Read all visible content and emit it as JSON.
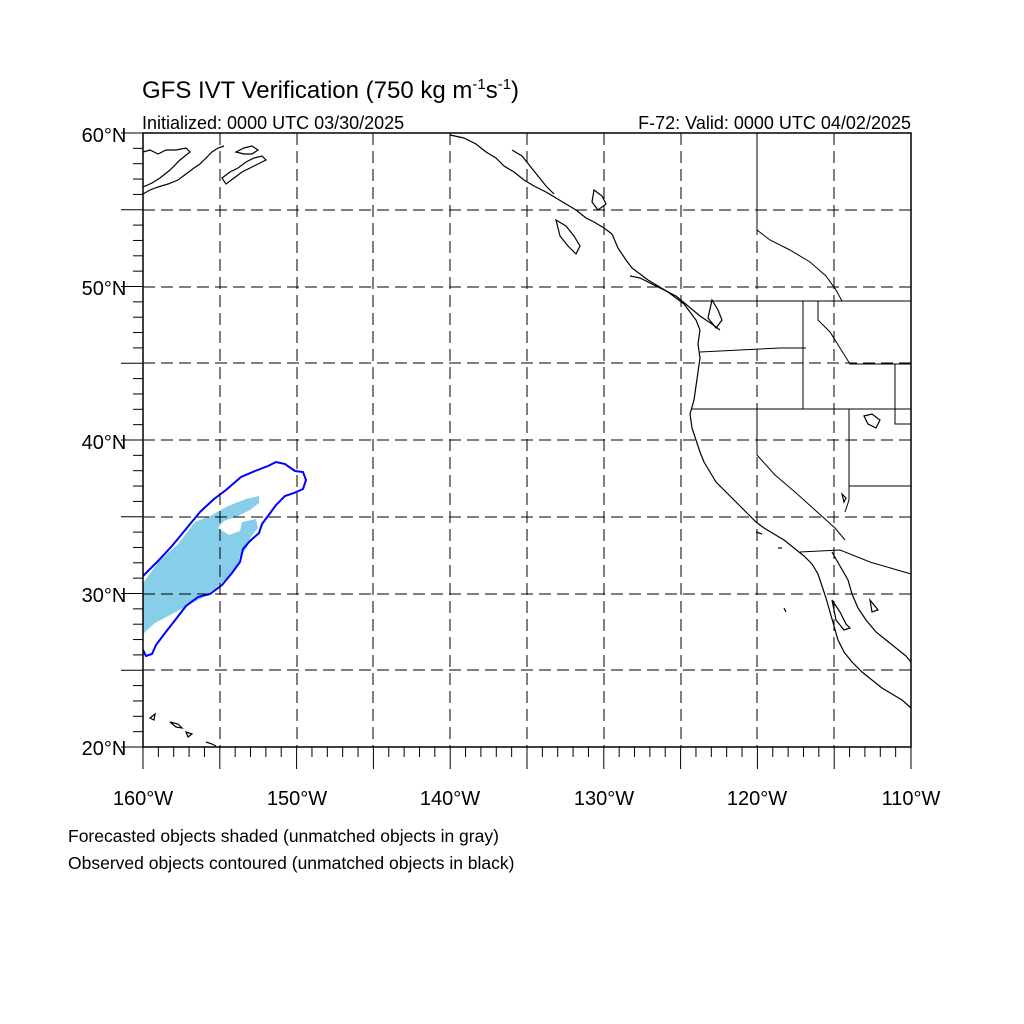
{
  "title": {
    "main": "GFS IVT Verification (750 kg m",
    "exp1": "-1",
    "mid": "s",
    "exp2": "-1",
    "end": ")"
  },
  "initialized": "Initialized: 0000 UTC 03/30/2025",
  "valid": "F-72: Valid: 0000 UTC 04/02/2025",
  "lat_labels": [
    "60°N",
    "50°N",
    "40°N",
    "30°N",
    "20°N"
  ],
  "lon_labels": [
    "160°W",
    "150°W",
    "140°W",
    "130°W",
    "120°W",
    "110°W"
  ],
  "footnotes": [
    "Forecasted objects shaded (unmatched objects in gray)",
    "Observed objects contoured (unmatched objects in black)"
  ],
  "map": {
    "lon_range": [
      -160,
      -110
    ],
    "lat_range": [
      20,
      60
    ],
    "grid_lon_step": 5,
    "grid_lat_step": 5,
    "projection": "cylindrical equidistant"
  },
  "colors": {
    "forecast_fill": "#87ceeb",
    "observed_contour": "#0000ff",
    "coastline": "#000000",
    "grid": "#000000"
  }
}
